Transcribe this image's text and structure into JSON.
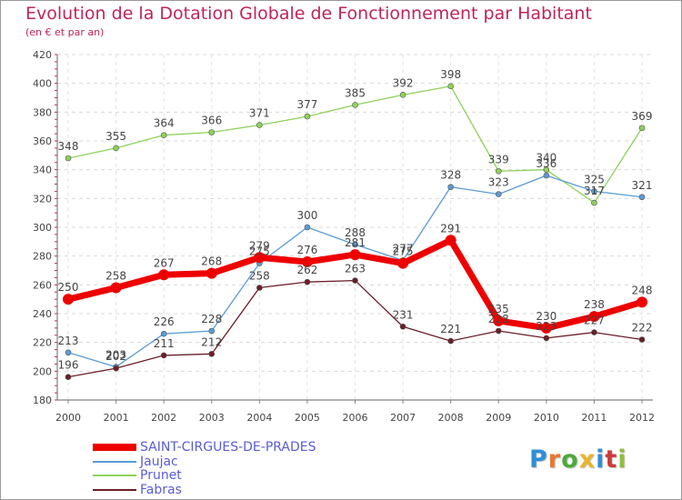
{
  "title": "Evolution de la Dotation Globale de Fonctionnement par Habitant",
  "subtitle": "(en € et par an)",
  "logo": {
    "text": "Proxiti",
    "letters": [
      "P",
      "r",
      "o",
      "x",
      "i",
      "t",
      "i"
    ],
    "colors": [
      "#2f8fd6",
      "#e8772e",
      "#4caa3a",
      "#e8b62e",
      "#2f8fd6",
      "#cc3b3b",
      "#8fbf3a"
    ]
  },
  "chart_data": {
    "type": "line",
    "x": [
      "2000",
      "2001",
      "2002",
      "2003",
      "2004",
      "2005",
      "2006",
      "2007",
      "2008",
      "2009",
      "2010",
      "2011",
      "2012"
    ],
    "ylim": [
      180,
      420
    ],
    "yticks": [
      180,
      200,
      220,
      240,
      260,
      280,
      300,
      320,
      340,
      360,
      380,
      400,
      420
    ],
    "grid": true,
    "legend_position": "bottom-left",
    "series": [
      {
        "name": "Prunet",
        "color": "#8fd15a",
        "values": [
          348,
          355,
          364,
          366,
          371,
          377,
          385,
          392,
          398,
          339,
          340,
          317,
          369
        ]
      },
      {
        "name": "Jaujac",
        "color": "#5b9bd5",
        "values": [
          213,
          203,
          226,
          228,
          275,
          300,
          288,
          277,
          328,
          323,
          336,
          325,
          321
        ]
      },
      {
        "name": "Fabras",
        "color": "#6b1e2a",
        "values": [
          196,
          202,
          211,
          212,
          258,
          262,
          263,
          231,
          221,
          228,
          223,
          227,
          222
        ]
      },
      {
        "name": "SAINT-CIRGUES-DE-PRADES",
        "color": "#ee0000",
        "values": [
          250,
          258,
          267,
          268,
          279,
          276,
          281,
          275,
          291,
          235,
          230,
          238,
          248
        ]
      }
    ],
    "legend_order": [
      "SAINT-CIRGUES-DE-PRADES",
      "Jaujac",
      "Prunet",
      "Fabras"
    ]
  }
}
